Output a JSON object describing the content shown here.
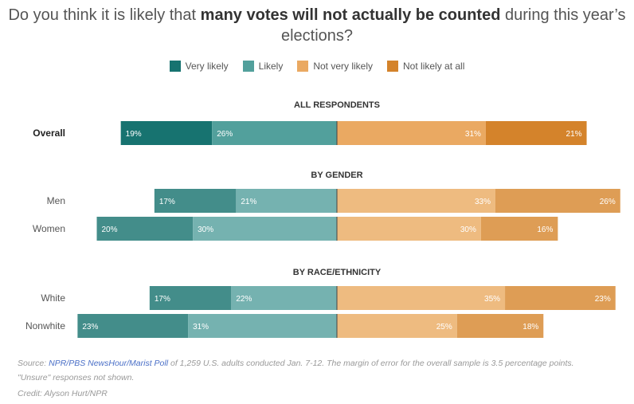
{
  "title": {
    "pre": "Do you think it is likely that ",
    "bold": "many votes will not actually be counted",
    "post": " during this year’s elections?"
  },
  "chart_data": {
    "type": "bar",
    "orientation": "horizontal-diverging",
    "legend": {
      "placement": "top",
      "entries": [
        "Very likely",
        "Likely",
        "Not very likely",
        "Not likely at all"
      ]
    },
    "groups": [
      {
        "heading": "ALL RESPONDENTS",
        "emphasis": true,
        "colors": [
          "#177370",
          "#52a09c",
          "#eaa962",
          "#d4832b"
        ],
        "rows": [
          {
            "label": "Overall",
            "values": [
              19,
              26,
              31,
              21
            ]
          }
        ]
      },
      {
        "heading": "BY GENDER",
        "emphasis": false,
        "colors": [
          "#438d8a",
          "#75b2b0",
          "#eebb80",
          "#de9d55"
        ],
        "rows": [
          {
            "label": "Men",
            "values": [
              17,
              21,
              33,
              26
            ]
          },
          {
            "label": "Women",
            "values": [
              20,
              30,
              30,
              16
            ]
          }
        ]
      },
      {
        "heading": "BY RACE/ETHNICITY",
        "emphasis": false,
        "colors": [
          "#438d8a",
          "#75b2b0",
          "#eebb80",
          "#de9d55"
        ],
        "rows": [
          {
            "label": "White",
            "values": [
              17,
              22,
              35,
              23
            ]
          },
          {
            "label": "Nonwhite",
            "values": [
              23,
              31,
              25,
              18
            ]
          }
        ]
      }
    ],
    "value_suffix": "%",
    "legend_colors": [
      "#177370",
      "#52a09c",
      "#eaa962",
      "#d4832b"
    ]
  },
  "footer": {
    "source_prefix": "Source: ",
    "source_link": "NPR/PBS NewsHour/Marist Poll",
    "source_rest": " of 1,259 U.S. adults conducted Jan. 7-12. The margin of error for the overall sample is 3.5 percentage points.",
    "note": "\"Unsure\" responses not shown.",
    "credit": "Credit: Alyson Hurt/NPR"
  }
}
